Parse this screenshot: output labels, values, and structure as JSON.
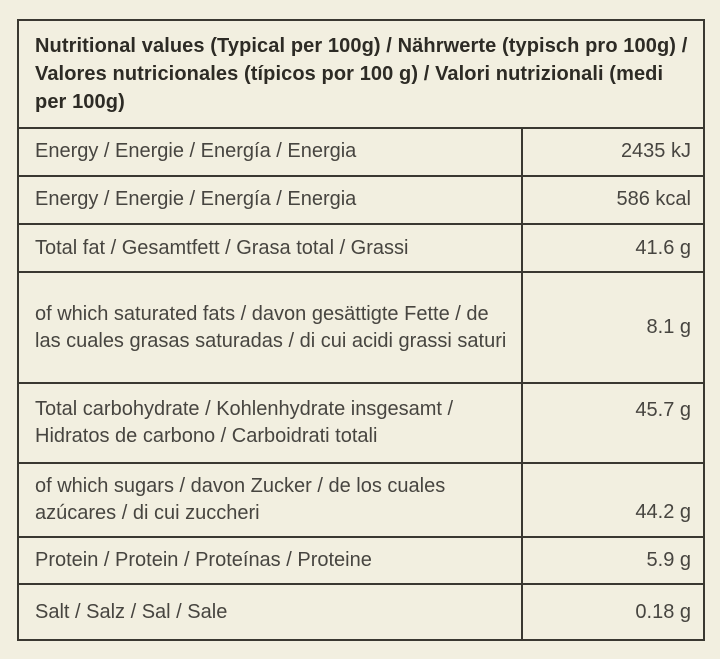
{
  "colors": {
    "background": "#f2efe0",
    "border": "#3a3831",
    "body_text": "#474540",
    "header_text": "#2d2b25"
  },
  "table": {
    "header_title": "Nutritional values (Typical per 100g) / Nährwerte (typisch pro 100g) / Valores nutricionales (típicos por 100 g) / Valori nutrizionali (medi per 100g)",
    "rows": [
      {
        "label": "Energy / Energie / Energía / Energia",
        "value": "2435 kJ"
      },
      {
        "label": "Energy / Energie / Energía / Energia",
        "value": "586 kcal"
      },
      {
        "label": "Total fat / Gesamtfett / Grasa total / Grassi",
        "value": "41.6 g"
      },
      {
        "label": "of which saturated fats / davon gesättigte Fette / de las cuales grasas saturadas / di cui acidi grassi saturi",
        "value": "8.1 g"
      },
      {
        "label": "Total carbohydrate / Kohlenhydrate insgesamt / Hidratos de carbono / Carboidrati totali",
        "value": "45.7 g"
      },
      {
        "label": "of which sugars / davon Zucker / de los cuales azúcares / di cui zuccheri",
        "value": "44.2 g"
      },
      {
        "label": "Protein / Protein / Proteínas / Proteine",
        "value": "5.9 g"
      },
      {
        "label": "Salt / Salz / Sal / Sale",
        "value": "0.18 g"
      }
    ]
  }
}
